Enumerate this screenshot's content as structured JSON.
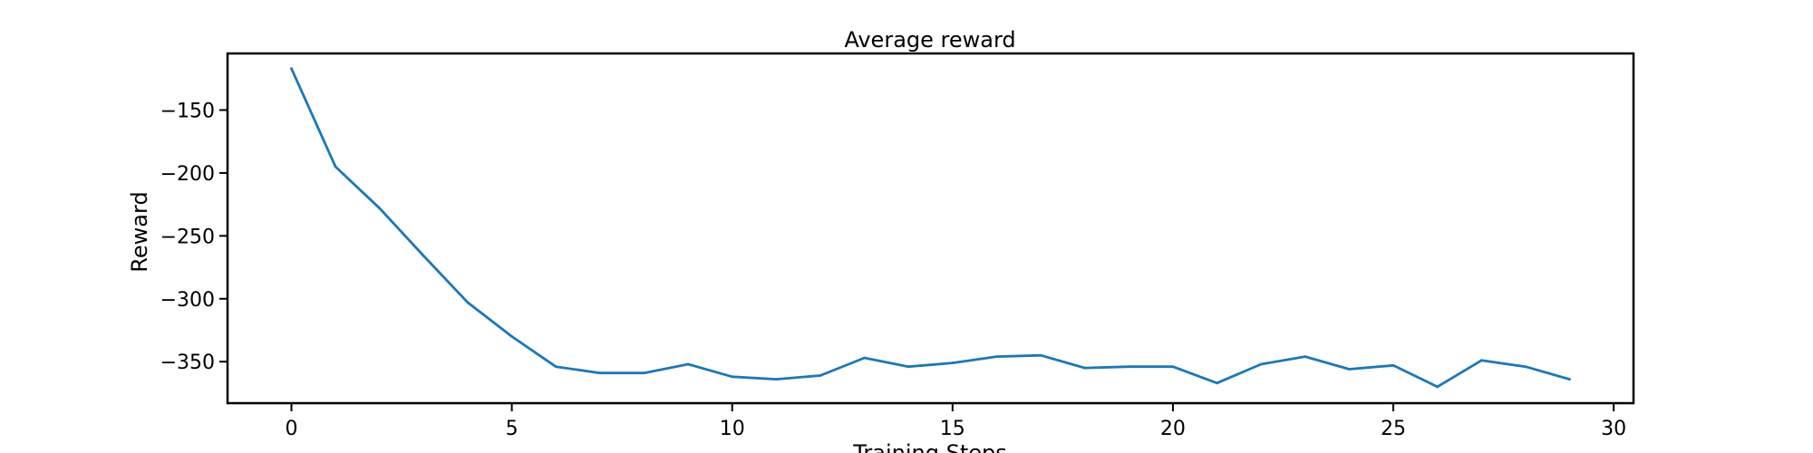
{
  "chart_data": {
    "type": "line",
    "title": "Average reward",
    "xlabel": "Training Steps",
    "ylabel": "Reward",
    "xlim": [
      -1.45,
      30.45
    ],
    "ylim": [
      -383,
      -105
    ],
    "xticks": [
      0,
      5,
      10,
      15,
      20,
      25,
      30
    ],
    "yticks": [
      -350,
      -300,
      -250,
      -200,
      -150
    ],
    "grid": false,
    "colors": {
      "line": "#1f77b4",
      "axes": "#000000",
      "background": "#ffffff"
    },
    "series": [
      {
        "x": [
          0,
          1,
          2,
          3,
          4,
          5,
          6,
          7,
          8,
          9,
          10,
          11,
          12,
          13,
          14,
          15,
          16,
          17,
          18,
          19,
          20,
          21,
          22,
          23,
          24,
          25,
          26,
          27,
          28,
          29
        ],
        "values": [
          -117,
          -195,
          -228,
          -266,
          -303,
          -330,
          -354,
          -359,
          -359,
          -352,
          -362,
          -364,
          -361,
          -347,
          -354,
          -351,
          -346,
          -345,
          -355,
          -354,
          -354,
          -367,
          -352,
          -346,
          -356,
          -353,
          -370,
          -349,
          -354,
          -364
        ]
      }
    ]
  }
}
